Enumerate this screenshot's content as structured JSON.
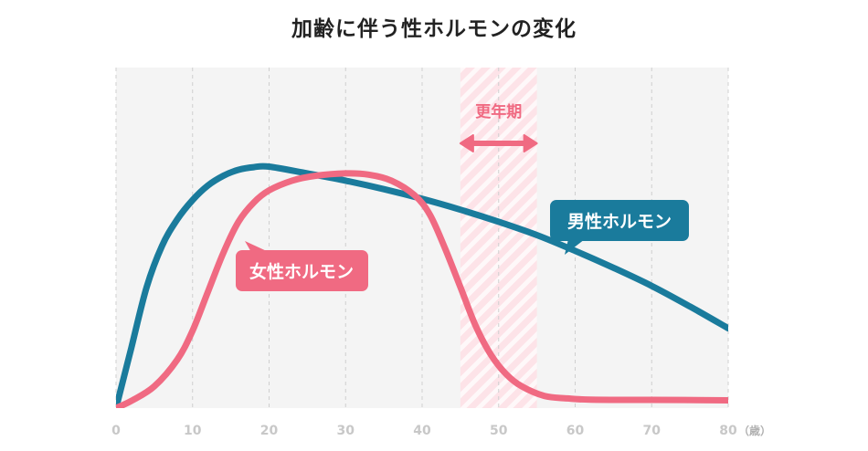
{
  "chart_data": {
    "type": "line",
    "title": "加齢に伴う性ホルモンの変化",
    "xlabel": "（歳）",
    "ylabel": "",
    "xlim": [
      0,
      80
    ],
    "ylim": [
      0,
      100
    ],
    "x_ticks": [
      "0",
      "10",
      "20",
      "30",
      "40",
      "50",
      "60",
      "70",
      "80"
    ],
    "grid": "vertical-dashed",
    "series": [
      {
        "name": "男性ホルモン",
        "color": "#1a7b9c",
        "points": [
          [
            0,
            0
          ],
          [
            2,
            25
          ],
          [
            4,
            50
          ],
          [
            6,
            67
          ],
          [
            8,
            78
          ],
          [
            10,
            86
          ],
          [
            12,
            92
          ],
          [
            14,
            96
          ],
          [
            16,
            98.5
          ],
          [
            18,
            99.6
          ],
          [
            20,
            99.8
          ],
          [
            25,
            97
          ],
          [
            30,
            94
          ],
          [
            35,
            90.5
          ],
          [
            40,
            86.5
          ],
          [
            45,
            82
          ],
          [
            50,
            77
          ],
          [
            55,
            71.5
          ],
          [
            60,
            65
          ],
          [
            65,
            58
          ],
          [
            70,
            50.5
          ],
          [
            75,
            42
          ],
          [
            80,
            33
          ]
        ]
      },
      {
        "name": "女性ホルモン",
        "color": "#f06a82",
        "points": [
          [
            0,
            0
          ],
          [
            2,
            3
          ],
          [
            5,
            9
          ],
          [
            8,
            20
          ],
          [
            10,
            32
          ],
          [
            12,
            48
          ],
          [
            14,
            64
          ],
          [
            16,
            77
          ],
          [
            18,
            85
          ],
          [
            20,
            90
          ],
          [
            23,
            94
          ],
          [
            26,
            96
          ],
          [
            30,
            97
          ],
          [
            33,
            96.5
          ],
          [
            36,
            94
          ],
          [
            39,
            88
          ],
          [
            41,
            80
          ],
          [
            43,
            66
          ],
          [
            45,
            50
          ],
          [
            47,
            34
          ],
          [
            49,
            22
          ],
          [
            51,
            14
          ],
          [
            53,
            9
          ],
          [
            56,
            5
          ],
          [
            59,
            4
          ],
          [
            62,
            3.5
          ],
          [
            70,
            3.4
          ],
          [
            80,
            3.2
          ]
        ]
      }
    ],
    "annotations": {
      "menopause": {
        "label": "更年期",
        "x_range": [
          45,
          55
        ]
      },
      "male_label": "男性ホルモン",
      "female_label": "女性ホルモン"
    }
  }
}
